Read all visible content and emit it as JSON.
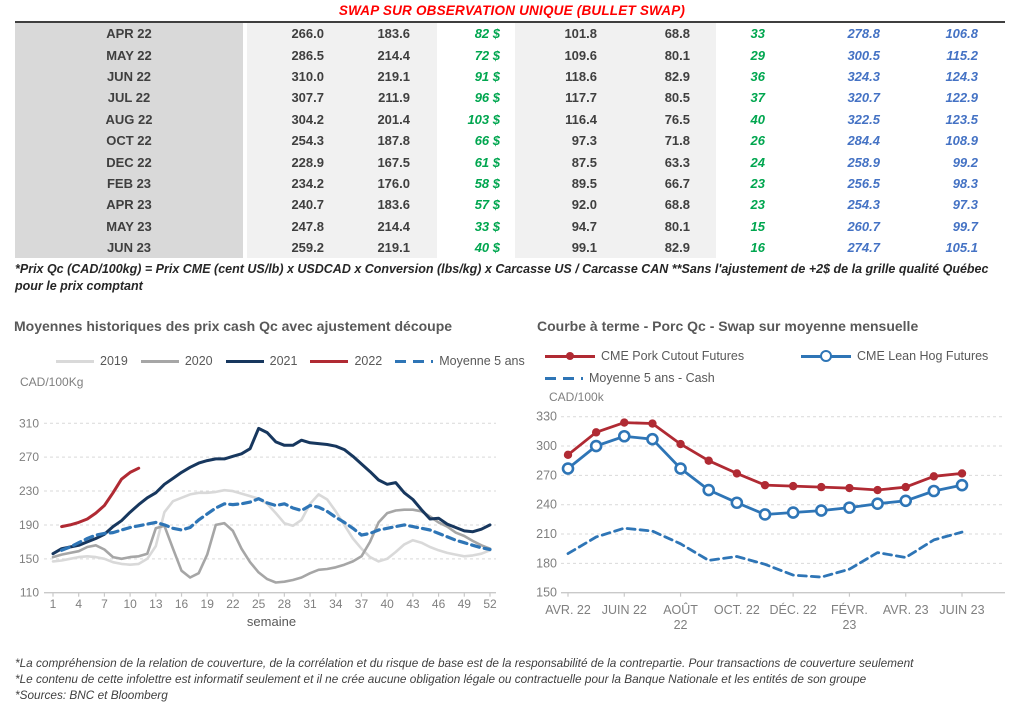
{
  "title": "SWAP SUR OBSERVATION UNIQUE (BULLET SWAP)",
  "colors": {
    "title_red": "#ff0000",
    "table_green": "#00a64f",
    "table_blue": "#4472c4",
    "month_bg": "#d9d9d9",
    "band_bg": "#f1f1f1",
    "navy": "#17375e",
    "dark_red": "#b02a33",
    "steel_blue": "#2e75b6",
    "gray_2020": "#a6a6a6",
    "gray_2019": "#d9d9d9"
  },
  "table": {
    "rows": [
      {
        "cells": [
          "APR 22",
          "266.0",
          "183.6",
          "82 $",
          "101.8",
          "68.8",
          "33",
          "278.8",
          "106.8"
        ]
      },
      {
        "cells": [
          "MAY 22",
          "286.5",
          "214.4",
          "72 $",
          "109.6",
          "80.1",
          "29",
          "300.5",
          "115.2"
        ]
      },
      {
        "cells": [
          "JUN 22",
          "310.0",
          "219.1",
          "91 $",
          "118.6",
          "82.9",
          "36",
          "324.3",
          "124.3"
        ]
      },
      {
        "cells": [
          "JUL 22",
          "307.7",
          "211.9",
          "96 $",
          "117.7",
          "80.5",
          "37",
          "320.7",
          "122.9"
        ]
      },
      {
        "cells": [
          "AUG 22",
          "304.2",
          "201.4",
          "103 $",
          "116.4",
          "76.5",
          "40",
          "322.5",
          "123.5"
        ]
      },
      {
        "cells": [
          "OCT 22",
          "254.3",
          "187.8",
          "66 $",
          "97.3",
          "71.8",
          "26",
          "284.4",
          "108.9"
        ]
      },
      {
        "cells": [
          "DEC 22",
          "228.9",
          "167.5",
          "61 $",
          "87.5",
          "63.3",
          "24",
          "258.9",
          "99.2"
        ]
      },
      {
        "cells": [
          "FEB 23",
          "234.2",
          "176.0",
          "58 $",
          "89.5",
          "66.7",
          "23",
          "256.5",
          "98.3"
        ]
      },
      {
        "cells": [
          "APR 23",
          "240.7",
          "183.6",
          "57 $",
          "92.0",
          "68.8",
          "23",
          "254.3",
          "97.3"
        ]
      },
      {
        "cells": [
          "MAY 23",
          "247.8",
          "214.4",
          "33 $",
          "94.7",
          "80.1",
          "15",
          "260.7",
          "99.7"
        ]
      },
      {
        "cells": [
          "JUN 23",
          "259.2",
          "219.1",
          "40 $",
          "99.1",
          "82.9",
          "16",
          "274.7",
          "105.1"
        ]
      }
    ]
  },
  "table_note": "*Prix Qc (CAD/100kg) = Prix CME (cent US/lb) x USDCAD x Conversion (lbs/kg) x Carcasse US / Carcasse CAN **Sans l'ajustement de +2$ de la grille qualité Québec pour le prix comptant",
  "footer_notes": {
    "line1": "*La compréhension de la relation de couverture, de la corrélation et du risque de base est de la responsabilité de la contrepartie. Pour transactions de couverture seulement",
    "line2": "*Le contenu de cette infolettre est informatif seulement et il ne crée aucune obligation légale ou contractuelle pour la Banque Nationale et les entités de son groupe",
    "line3": "*Sources: BNC et Bloomberg"
  },
  "chart_data": [
    {
      "type": "line",
      "title": "Moyennes historiques des prix cash Qc avec ajustement découpe",
      "ylabel": "CAD/100Kg",
      "xlabel": "semaine",
      "ylim": [
        110,
        310
      ],
      "y_ticks": [
        110,
        150,
        190,
        230,
        270,
        310
      ],
      "x_count": 52,
      "x_tick_idx": [
        0,
        3,
        6,
        9,
        12,
        15,
        18,
        21,
        24,
        27,
        30,
        33,
        36,
        39,
        42,
        45,
        48,
        51
      ],
      "x_tick_labels": [
        "1",
        "4",
        "7",
        "10",
        "13",
        "16",
        "19",
        "22",
        "25",
        "28",
        "31",
        "34",
        "37",
        "40",
        "43",
        "46",
        "49",
        "52"
      ],
      "grid": true,
      "legend_position": "top",
      "series": [
        {
          "name": "2019",
          "color": "#d9d9d9",
          "width": 2.6,
          "values": [
            147,
            148,
            150,
            152,
            153,
            152,
            150,
            146,
            144,
            143,
            144,
            150,
            165,
            205,
            218,
            222,
            226,
            228,
            228,
            229,
            231,
            230,
            227,
            224,
            221,
            215,
            204,
            192,
            189,
            196,
            215,
            226,
            220,
            206,
            190,
            174,
            162,
            152,
            147,
            150,
            158,
            167,
            172,
            169,
            164,
            160,
            157,
            155,
            153,
            154,
            156,
            160
          ]
        },
        {
          "name": "2020",
          "color": "#a6a6a6",
          "width": 2.6,
          "values": [
            152,
            155,
            157,
            159,
            164,
            166,
            161,
            152,
            150,
            152,
            153,
            156,
            186,
            189,
            162,
            136,
            128,
            133,
            155,
            190,
            192,
            183,
            162,
            146,
            134,
            126,
            122,
            123,
            125,
            128,
            133,
            137,
            138,
            140,
            143,
            147,
            153,
            170,
            193,
            204,
            207,
            208,
            208,
            206,
            200,
            193,
            188,
            181,
            177,
            171,
            166,
            162
          ]
        },
        {
          "name": "2021",
          "color": "#17375e",
          "width": 3,
          "values": [
            156,
            162,
            164,
            166,
            170,
            174,
            179,
            188,
            195,
            205,
            214,
            222,
            228,
            238,
            245,
            252,
            258,
            263,
            266,
            268,
            268,
            271,
            274,
            280,
            304,
            299,
            288,
            284,
            284,
            290,
            287,
            286,
            285,
            283,
            279,
            271,
            262,
            253,
            243,
            238,
            240,
            228,
            220,
            208,
            197,
            198,
            191,
            187,
            183,
            182,
            185,
            190
          ]
        },
        {
          "name": "2022",
          "color": "#b02a33",
          "width": 3,
          "values": [
            null,
            188,
            190,
            193,
            197,
            204,
            213,
            228,
            244,
            252,
            257,
            null,
            null,
            null,
            null,
            null,
            null,
            null,
            null,
            null,
            null,
            null,
            null,
            null,
            null,
            null,
            null,
            null,
            null,
            null,
            null,
            null,
            null,
            null,
            null,
            null,
            null,
            null,
            null,
            null,
            null,
            null,
            null,
            null,
            null,
            null,
            null,
            null,
            null,
            null,
            null,
            null
          ]
        },
        {
          "name": "Moyenne 5 ans",
          "color": "#2e75b6",
          "width": 3.2,
          "dash": "8 5",
          "values": [
            null,
            160,
            164,
            169,
            174,
            178,
            180,
            181,
            184,
            187,
            189,
            191,
            193,
            190,
            186,
            184,
            187,
            196,
            203,
            210,
            215,
            214,
            215,
            217,
            221,
            216,
            213,
            215,
            210,
            207,
            213,
            211,
            206,
            199,
            193,
            186,
            178,
            180,
            184,
            186,
            188,
            190,
            188,
            186,
            184,
            180,
            176,
            172,
            169,
            166,
            163,
            161
          ]
        }
      ]
    },
    {
      "type": "line",
      "title": "Courbe à terme - Porc Qc - Swap sur moyenne mensuelle",
      "ylabel": "CAD/100k",
      "xlabel": "",
      "ylim": [
        150,
        330
      ],
      "y_ticks": [
        150,
        180,
        210,
        240,
        270,
        300,
        330
      ],
      "x_count": 15,
      "x_tick_idx": [
        0,
        2,
        4,
        6,
        8,
        10,
        12,
        14
      ],
      "x_tick_labels": [
        "AVR. 22",
        "JUIN 22",
        "AOÛT\n22",
        "OCT. 22",
        "DÉC. 22",
        "FÉVR.\n23",
        "AVR. 23",
        "JUIN 23"
      ],
      "grid": true,
      "legend_position": "top",
      "series": [
        {
          "name": "Moyenne 5 ans - Cash",
          "color": "#2e75b6",
          "width": 2.8,
          "dash": "8 5",
          "values": [
            190,
            207,
            216,
            213,
            200,
            183,
            187,
            179,
            168,
            166,
            174,
            191,
            186,
            204,
            212
          ]
        },
        {
          "name": "CME Lean Hog Futures",
          "color": "#2e75b6",
          "width": 2.8,
          "marker": "open",
          "values": [
            277,
            300,
            310,
            307,
            277,
            255,
            242,
            230,
            232,
            234,
            237,
            241,
            244,
            254,
            260
          ]
        },
        {
          "name": "CME Pork Cutout Futures",
          "color": "#b02a33",
          "width": 2.8,
          "marker": "filled",
          "values": [
            291,
            314,
            324,
            323,
            302,
            285,
            272,
            260,
            259,
            258,
            257,
            255,
            258,
            269,
            272
          ]
        }
      ]
    }
  ]
}
